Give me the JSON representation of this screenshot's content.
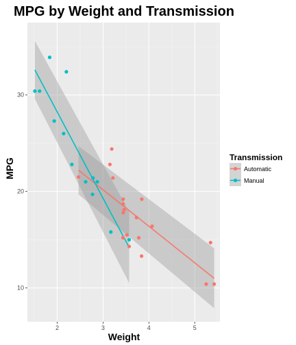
{
  "chart_data": {
    "type": "scatter",
    "title": "MPG by Weight and Transmission",
    "xlabel": "Weight",
    "ylabel": "MPG",
    "xlim": [
      1.35,
      5.55
    ],
    "ylim": [
      6.5,
      37.5
    ],
    "x_ticks": [
      2,
      3,
      4,
      5
    ],
    "y_ticks": [
      10,
      20,
      30
    ],
    "grid": true,
    "legend": {
      "title": "Transmission",
      "placement": "right"
    },
    "series": [
      {
        "name": "Automatic",
        "color": "#F8766D",
        "points": [
          {
            "x": 3.215,
            "y": 21.4
          },
          {
            "x": 3.44,
            "y": 18.7
          },
          {
            "x": 3.46,
            "y": 18.1
          },
          {
            "x": 3.57,
            "y": 14.3
          },
          {
            "x": 3.19,
            "y": 24.4
          },
          {
            "x": 3.15,
            "y": 22.8
          },
          {
            "x": 3.44,
            "y": 19.2
          },
          {
            "x": 3.44,
            "y": 17.8
          },
          {
            "x": 4.07,
            "y": 16.4
          },
          {
            "x": 3.73,
            "y": 17.3
          },
          {
            "x": 3.78,
            "y": 15.2
          },
          {
            "x": 5.25,
            "y": 10.4
          },
          {
            "x": 5.424,
            "y": 10.4
          },
          {
            "x": 5.345,
            "y": 14.7
          },
          {
            "x": 2.465,
            "y": 21.5
          },
          {
            "x": 3.52,
            "y": 15.5
          },
          {
            "x": 3.435,
            "y": 15.2
          },
          {
            "x": 3.84,
            "y": 13.3
          },
          {
            "x": 3.845,
            "y": 19.2
          }
        ],
        "fit": {
          "x": [
            2.465,
            5.424
          ],
          "y": [
            22.2,
            11.0
          ]
        },
        "band": {
          "x": [
            2.465,
            5.424
          ],
          "lower": [
            19.7,
            7.9
          ],
          "upper": [
            24.7,
            14.1
          ]
        }
      },
      {
        "name": "Manual",
        "color": "#00BFC4",
        "points": [
          {
            "x": 2.62,
            "y": 21.0
          },
          {
            "x": 2.875,
            "y": 21.0
          },
          {
            "x": 2.32,
            "y": 22.8
          },
          {
            "x": 2.2,
            "y": 32.4
          },
          {
            "x": 1.615,
            "y": 30.4
          },
          {
            "x": 1.835,
            "y": 33.9
          },
          {
            "x": 1.935,
            "y": 27.3
          },
          {
            "x": 2.14,
            "y": 26.0
          },
          {
            "x": 1.513,
            "y": 30.4
          },
          {
            "x": 3.17,
            "y": 15.8
          },
          {
            "x": 2.77,
            "y": 19.7
          },
          {
            "x": 3.57,
            "y": 15.0
          },
          {
            "x": 2.78,
            "y": 21.4
          }
        ],
        "fit": {
          "x": [
            1.513,
            3.57
          ],
          "y": [
            32.6,
            14.2
          ]
        },
        "band": {
          "x": [
            1.513,
            3.57
          ],
          "lower": [
            29.6,
            10.5
          ],
          "upper": [
            35.6,
            17.9
          ]
        }
      }
    ]
  }
}
